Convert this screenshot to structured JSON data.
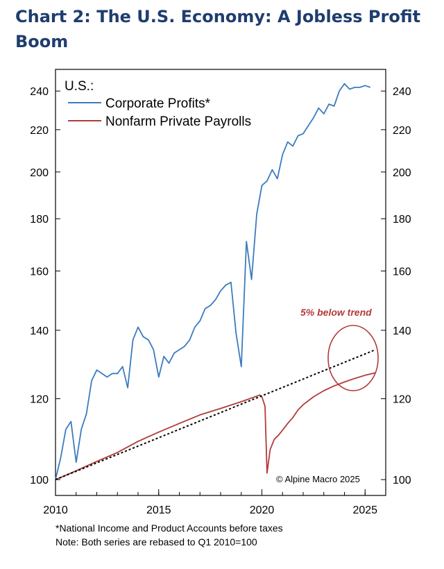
{
  "header": {
    "title_line1": "Chart 2: The U.S. Economy: A Jobless Profit",
    "title_line2": "Boom"
  },
  "footnotes": {
    "line1": "*National Income and Product Accounts before taxes",
    "line2": "Note: Both series are rebased to Q1 2010=100"
  },
  "chart_data": {
    "type": "line",
    "panel_label": "U.S.:",
    "y_scale": "log",
    "ylim": [
      96.5,
      252
    ],
    "xlim": [
      2010,
      2026
    ],
    "y_ticks": [
      100,
      120,
      140,
      160,
      180,
      200,
      220,
      240
    ],
    "y_tick_labels": [
      "100",
      "120",
      "140",
      "160",
      "180",
      "200",
      "220",
      "240"
    ],
    "x_ticks": [
      2010,
      2015,
      2020,
      2025
    ],
    "x_tick_labels": [
      "2010",
      "2015",
      "2020",
      "2025"
    ],
    "annotation": "5% below trend",
    "copyright": "© Alpine Macro 2025",
    "colors": {
      "profits": "#3b7bbf",
      "payrolls": "#b23a3a",
      "trend": "#000000",
      "title": "#1f3d6e"
    },
    "series": [
      {
        "name": "Corporate Profits*",
        "x": [
          2010.0,
          2010.25,
          2010.5,
          2010.75,
          2011.0,
          2011.25,
          2011.5,
          2011.75,
          2012.0,
          2012.25,
          2012.5,
          2012.75,
          2013.0,
          2013.25,
          2013.5,
          2013.75,
          2014.0,
          2014.25,
          2014.5,
          2014.75,
          2015.0,
          2015.25,
          2015.5,
          2015.75,
          2016.0,
          2016.25,
          2016.5,
          2016.75,
          2017.0,
          2017.25,
          2017.5,
          2017.75,
          2018.0,
          2018.25,
          2018.5,
          2018.75,
          2019.0,
          2019.25,
          2019.5,
          2019.75,
          2020.0,
          2020.25,
          2020.5,
          2020.75,
          2021.0,
          2021.25,
          2021.5,
          2021.75,
          2022.0,
          2022.25,
          2022.5,
          2022.75,
          2023.0,
          2023.25,
          2023.5,
          2023.75,
          2024.0,
          2024.25,
          2024.5,
          2024.75,
          2025.0,
          2025.25
        ],
        "values": [
          100,
          105,
          112,
          114,
          104,
          112,
          116,
          125,
          128,
          127,
          126,
          127,
          127,
          129,
          123,
          137,
          141,
          138,
          137,
          134,
          126,
          132,
          130,
          133,
          134,
          135,
          137,
          141,
          143,
          147,
          148,
          150,
          153,
          155,
          156,
          139,
          129,
          171,
          157,
          182,
          194,
          196,
          201,
          197,
          208,
          214,
          212,
          217,
          218,
          222,
          226,
          231,
          228,
          233,
          232,
          240,
          244,
          241,
          242,
          242,
          243,
          242
        ],
        "line_style": "solid"
      },
      {
        "name": "Nonfarm Private Payrolls",
        "x": [
          2010.0,
          2011.0,
          2012.0,
          2013.0,
          2014.0,
          2015.0,
          2016.0,
          2017.0,
          2018.0,
          2019.0,
          2019.9,
          2020.0,
          2020.15,
          2020.25,
          2020.4,
          2020.6,
          2020.8,
          2021.0,
          2021.25,
          2021.5,
          2021.75,
          2022.0,
          2022.5,
          2023.0,
          2023.5,
          2024.0,
          2024.5,
          2025.0,
          2025.5
        ],
        "values": [
          100,
          102,
          104.2,
          106.3,
          109,
          111.3,
          113.5,
          115.7,
          117.4,
          119.2,
          121,
          120.5,
          118,
          101.5,
          107,
          109.5,
          110.5,
          111.8,
          113.5,
          115,
          117,
          118.4,
          120.5,
          122.2,
          123.5,
          124.6,
          125.6,
          126.5,
          127.2
        ],
        "line_style": "solid"
      },
      {
        "name": "Trend",
        "x": [
          2010.0,
          2025.5
        ],
        "values": [
          100,
          134
        ],
        "line_style": "dotted"
      }
    ]
  }
}
